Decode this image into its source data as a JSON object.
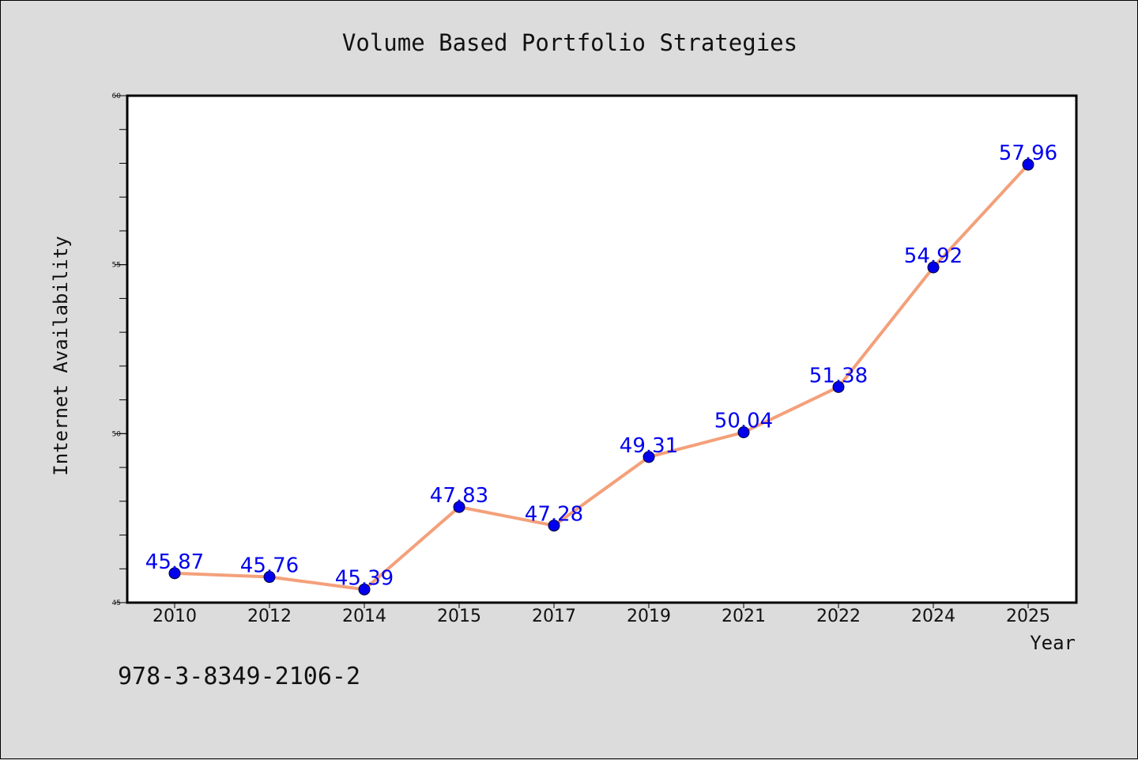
{
  "chart_data": {
    "type": "line",
    "title": "Volume Based Portfolio Strategies",
    "xlabel": "Year",
    "ylabel": "Internet Availability",
    "categories": [
      "2010",
      "2012",
      "2014",
      "2015",
      "2017",
      "2019",
      "2021",
      "2022",
      "2024",
      "2025"
    ],
    "series": [
      {
        "values": [
          45.87,
          45.76,
          45.39,
          47.83,
          47.28,
          49.31,
          50.04,
          51.38,
          54.92,
          57.96
        ],
        "data_labels": [
          "45.87",
          "45.76",
          "45.39",
          "47.83",
          "47.28",
          "49.31",
          "50.04",
          "51.38",
          "54.92",
          "57.96"
        ],
        "line_color": "#f4a07a",
        "marker_color": "#0000ee",
        "label_color": "#0000ee"
      }
    ],
    "ylim": [
      45,
      60
    ],
    "yticks": [
      "45",
      "50",
      "55",
      "60"
    ],
    "grid": false,
    "legend": "none"
  },
  "annotation": "978-3-8349-2106-2",
  "colors": {
    "background": "#dcdcdc",
    "plot_background": "#ffffff",
    "axis": "#000000"
  }
}
